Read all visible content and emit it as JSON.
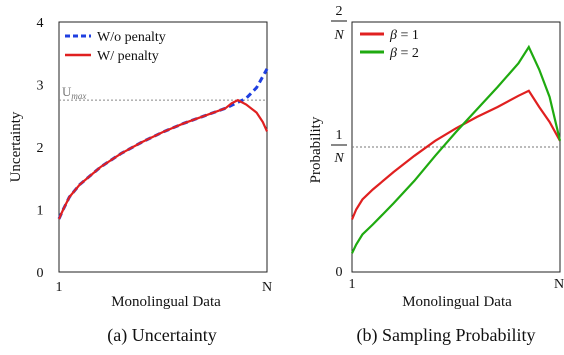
{
  "chart_data": [
    {
      "type": "line",
      "caption": "(a) Uncertainty",
      "xlabel": "Monolingual Data",
      "ylabel": "Uncertainty",
      "x_ticks": [
        "1",
        "N"
      ],
      "y_ticks": [
        "0",
        "1",
        "2",
        "3",
        "4"
      ],
      "ylim": [
        0,
        4
      ],
      "xlim": [
        0,
        1
      ],
      "reference_line": {
        "label_base": "U",
        "label_sub": "max",
        "y": 2.75
      },
      "legend": "top-right",
      "series": [
        {
          "name": "W/o penalty",
          "style": "dashed",
          "color": "#1f3fe0",
          "x": [
            0,
            0.02,
            0.05,
            0.1,
            0.2,
            0.3,
            0.4,
            0.5,
            0.6,
            0.7,
            0.8,
            0.85,
            0.9,
            0.95,
            1.0
          ],
          "y": [
            0.85,
            1.0,
            1.2,
            1.4,
            1.68,
            1.9,
            2.08,
            2.24,
            2.38,
            2.5,
            2.62,
            2.7,
            2.78,
            2.95,
            3.25
          ]
        },
        {
          "name": "W/ penalty",
          "style": "solid",
          "color": "#e02020",
          "x": [
            0,
            0.02,
            0.05,
            0.1,
            0.2,
            0.3,
            0.4,
            0.5,
            0.6,
            0.7,
            0.8,
            0.83,
            0.86,
            0.9,
            0.95,
            0.98,
            1.0
          ],
          "y": [
            0.85,
            1.0,
            1.2,
            1.4,
            1.68,
            1.9,
            2.08,
            2.24,
            2.38,
            2.5,
            2.62,
            2.7,
            2.75,
            2.68,
            2.55,
            2.4,
            2.25
          ]
        }
      ]
    },
    {
      "type": "line",
      "caption": "(b) Sampling Probability",
      "xlabel": "Monolingual Data",
      "ylabel": "Probability",
      "x_ticks": [
        "1",
        "N"
      ],
      "y_ticks": [
        "0"
      ],
      "y_frac_ticks": [
        {
          "num": "1",
          "den": "N"
        },
        {
          "num": "2",
          "den": "N"
        }
      ],
      "ylim": [
        0,
        2
      ],
      "xlim": [
        0,
        1
      ],
      "reference_line": {
        "y": 1.0
      },
      "legend": "top-left",
      "series": [
        {
          "name_sym": "β",
          "name_rest": " = 1",
          "color": "#e02020",
          "x": [
            0,
            0.02,
            0.05,
            0.1,
            0.2,
            0.3,
            0.4,
            0.5,
            0.6,
            0.7,
            0.8,
            0.85,
            0.9,
            0.95,
            1.0
          ],
          "y": [
            0.42,
            0.5,
            0.58,
            0.66,
            0.8,
            0.93,
            1.05,
            1.15,
            1.24,
            1.32,
            1.41,
            1.45,
            1.32,
            1.2,
            1.05
          ]
        },
        {
          "name_sym": "β",
          "name_rest": " = 2",
          "color": "#1faa10",
          "x": [
            0,
            0.02,
            0.05,
            0.1,
            0.2,
            0.3,
            0.4,
            0.5,
            0.6,
            0.7,
            0.8,
            0.85,
            0.9,
            0.95,
            1.0
          ],
          "y": [
            0.15,
            0.22,
            0.3,
            0.38,
            0.55,
            0.73,
            0.93,
            1.12,
            1.3,
            1.48,
            1.67,
            1.8,
            1.62,
            1.4,
            1.05
          ]
        }
      ]
    }
  ]
}
